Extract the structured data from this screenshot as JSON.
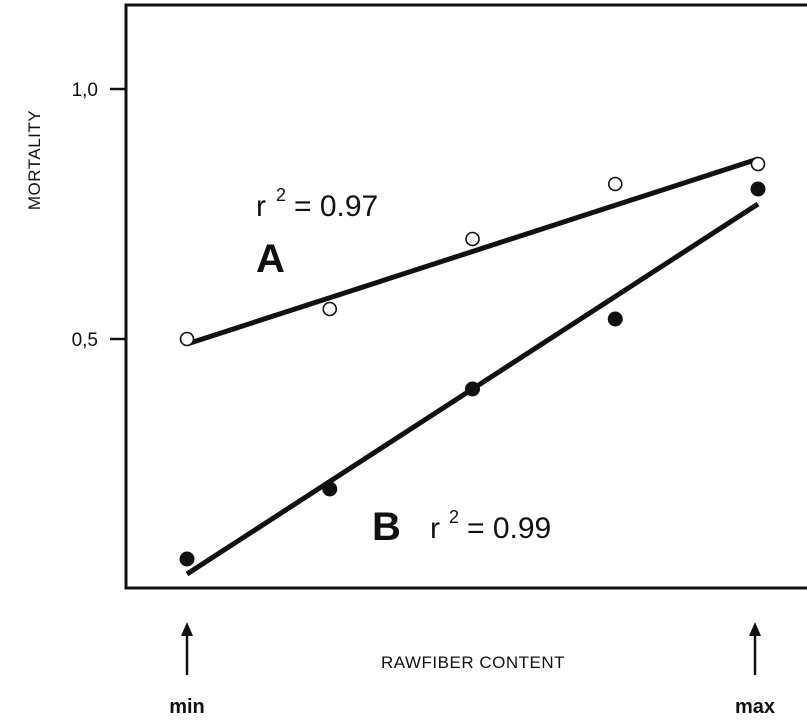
{
  "chart_data": {
    "type": "scatter",
    "ylabel": "MORTALITY",
    "xlabel": "RAWFIBER CONTENT",
    "x_min_label": "min",
    "x_max_label": "max",
    "ylim": [
      0.0,
      1.1
    ],
    "y_ticks": [
      {
        "value": 0.5,
        "label": "0,5"
      },
      {
        "value": 1.0,
        "label": "1,0"
      }
    ],
    "x": [
      1,
      2,
      3,
      4,
      5
    ],
    "series": [
      {
        "name": "A",
        "marker": "open-circle",
        "values": [
          0.5,
          0.56,
          0.7,
          0.81,
          0.85
        ],
        "fit": {
          "y_at_min": 0.49,
          "y_at_max": 0.86
        },
        "r2_label": "r",
        "r2_sup": "2",
        "r2_value": "= 0.97"
      },
      {
        "name": "B",
        "marker": "filled-circle",
        "values": [
          0.06,
          0.2,
          0.4,
          0.54,
          0.8
        ],
        "fit": {
          "y_at_min": 0.03,
          "y_at_max": 0.77
        },
        "r2_label": "r",
        "r2_sup": "2",
        "r2_value": "= 0.99"
      }
    ],
    "grid": false,
    "legend": "none"
  }
}
